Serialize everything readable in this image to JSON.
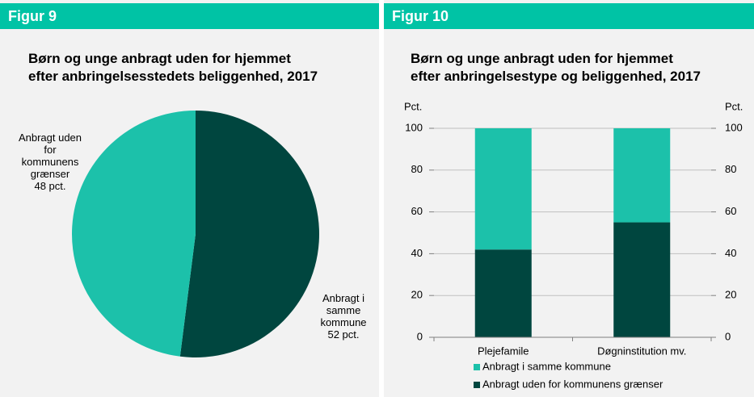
{
  "chart_data": [
    {
      "type": "pie",
      "figure_label": "Figur 9",
      "title": [
        "Børn og unge anbragt uden for hjemmet",
        "efter anbringelsesstedets beliggenhed, 2017"
      ],
      "categories": [
        "Anbragt i samme kommune",
        "Anbragt uden for kommunens grænser"
      ],
      "values": [
        52,
        48
      ],
      "value_labels": [
        "52 pct.",
        "48 pct."
      ],
      "colors": [
        "#00463f",
        "#1cc1aa"
      ]
    },
    {
      "type": "stacked_bar",
      "figure_label": "Figur 10",
      "title": [
        "Børn og unge anbragt uden for hjemmet",
        "efter anbringelsestype og beliggenhed, 2017"
      ],
      "y_label": "Pct.",
      "y2_label": "Pct.",
      "categories": [
        "Plejefamile",
        "Døgninstitution mv."
      ],
      "series": [
        {
          "name": "Anbragt uden for kommunens grænser",
          "color": "#00463f",
          "values": [
            42,
            55
          ]
        },
        {
          "name": "Anbragt i samme kommune",
          "color": "#1cc1aa",
          "values": [
            58,
            45
          ]
        }
      ],
      "ylim": [
        0,
        100
      ],
      "yticks": [
        0,
        20,
        40,
        60,
        80,
        100
      ],
      "y2lim": [
        0,
        100
      ],
      "y2ticks": [
        0,
        20,
        40,
        60,
        80,
        100
      ],
      "grid": true
    }
  ]
}
